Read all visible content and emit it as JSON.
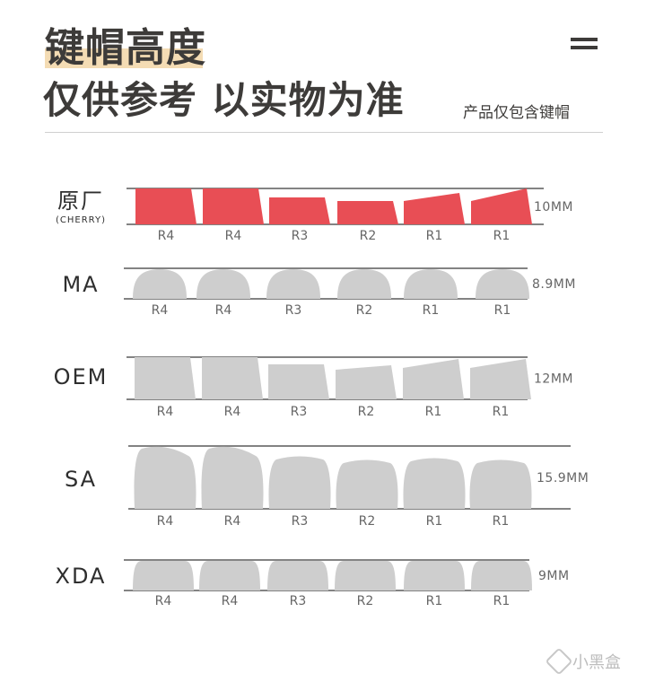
{
  "header": {
    "title_line1": "键帽高度",
    "title_line2": "仅供参考 以实物为准",
    "note": "产品仅包含键帽"
  },
  "colors": {
    "highlight": "#f4dcb4",
    "cherry_fill": "#e84e55",
    "key_fill": "#cecece",
    "rule": "#5a5a5a",
    "label": "#666666"
  },
  "icons": {
    "menu": "menu-icon"
  },
  "watermark": {
    "text": "小黑盒"
  },
  "profiles": [
    {
      "name": "原厂",
      "subname": "(CHERRY)",
      "height_label": "10MM",
      "color": "#e84e55",
      "rows": [
        "R4",
        "R4",
        "R3",
        "R2",
        "R1",
        "R1"
      ]
    },
    {
      "name": "MA",
      "subname": "",
      "height_label": "8.9MM",
      "color": "#cecece",
      "rows": [
        "R4",
        "R4",
        "R3",
        "R2",
        "R1",
        "R1"
      ]
    },
    {
      "name": "OEM",
      "subname": "",
      "height_label": "12MM",
      "color": "#cecece",
      "rows": [
        "R4",
        "R4",
        "R3",
        "R2",
        "R1",
        "R1"
      ]
    },
    {
      "name": "SA",
      "subname": "",
      "height_label": "15.9MM",
      "color": "#cecece",
      "rows": [
        "R4",
        "R4",
        "R3",
        "R2",
        "R1",
        "R1"
      ]
    },
    {
      "name": "XDA",
      "subname": "",
      "height_label": "9MM",
      "color": "#cecece",
      "rows": [
        "R4",
        "R4",
        "R3",
        "R2",
        "R1",
        "R1"
      ]
    }
  ]
}
